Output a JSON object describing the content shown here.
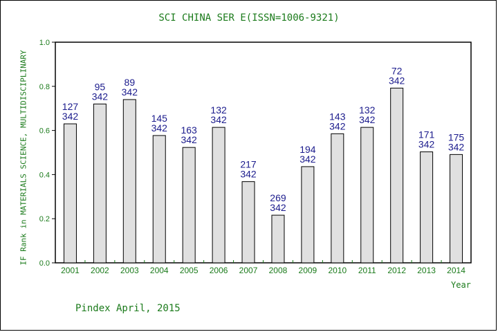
{
  "chart_data": {
    "type": "bar",
    "title": "SCI CHINA SER E(ISSN=1006-9321)",
    "ylabel": "IF Rank in MATERIALS SCIENCE, MULTIDISCIPLINARY",
    "xlabel": "Year",
    "footer": "Pindex April, 2015",
    "ylim": [
      0,
      1.0
    ],
    "yticks": [
      "0.0",
      "0.2",
      "0.4",
      "0.6",
      "0.8",
      "1.0"
    ],
    "categories": [
      "2001",
      "2002",
      "2003",
      "2004",
      "2005",
      "2006",
      "2007",
      "2008",
      "2009",
      "2010",
      "2011",
      "2012",
      "2013",
      "2014"
    ],
    "values": [
      0.63,
      0.72,
      0.74,
      0.577,
      0.523,
      0.614,
      0.368,
      0.216,
      0.436,
      0.585,
      0.614,
      0.792,
      0.503,
      0.491
    ],
    "ranks": [
      "127",
      "95",
      "89",
      "145",
      "163",
      "132",
      "217",
      "269",
      "194",
      "143",
      "132",
      "72",
      "171",
      "175"
    ],
    "totals": [
      "342",
      "342",
      "342",
      "342",
      "342",
      "342",
      "342",
      "342",
      "342",
      "342",
      "342",
      "342",
      "342",
      "342"
    ],
    "grid": false,
    "legend": "none",
    "colors": {
      "bar_fill": "#e0e0e0",
      "bar_stroke": "#000000",
      "axis_text": "#1a7a1a",
      "data_label": "#1a1a8c",
      "tick_mark": "#1a7a1a"
    }
  }
}
